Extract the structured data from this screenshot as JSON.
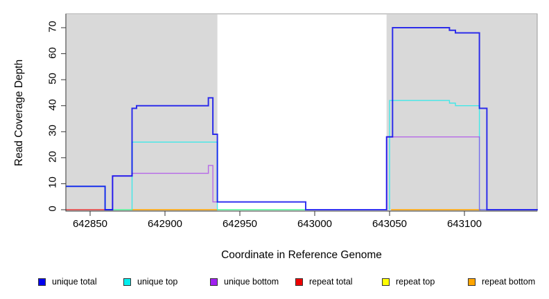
{
  "chart_data": {
    "type": "step-line",
    "title": "",
    "xlabel": "Coordinate in Reference Genome",
    "ylabel": "Read Coverage Depth",
    "x_ticks": [
      642850,
      642900,
      642950,
      643000,
      643050,
      643100
    ],
    "y_ticks": [
      0,
      10,
      20,
      30,
      40,
      50,
      60,
      70
    ],
    "x_range": [
      642834,
      643149
    ],
    "y_range": [
      0,
      75.5
    ],
    "grid": false,
    "legend_position": "bottom",
    "shaded_region_color": "#d9d9d9",
    "shaded_regions": [
      {
        "x0": 642834,
        "x1": 642935
      },
      {
        "x0": 643048,
        "x1": 643149
      }
    ],
    "series": [
      {
        "name": "repeat total",
        "color": "#EE0000",
        "width": 1.5,
        "opacity": 0.75,
        "segments": [
          [
            [
              642834,
              0
            ],
            [
              642860,
              0
            ]
          ]
        ]
      },
      {
        "name": "repeat top",
        "color": "#FFFF00",
        "width": 1.5,
        "opacity": 0.9,
        "segments": [
          [
            [
              642865,
              0
            ],
            [
              642878,
              0
            ]
          ],
          [
            [
              642935,
              0
            ],
            [
              642994,
              0
            ]
          ]
        ]
      },
      {
        "name": "repeat bottom",
        "color": "#FFA500",
        "width": 1.8,
        "opacity": 0.9,
        "segments": [
          [
            [
              642878,
              0
            ],
            [
              642935,
              0
            ]
          ],
          [
            [
              643051,
              0
            ],
            [
              643111,
              0
            ]
          ]
        ]
      },
      {
        "name": "unique top",
        "color": "#00EEEE",
        "width": 1.4,
        "opacity": 0.7,
        "segments": [
          [
            [
              642834,
              9
            ],
            [
              642860,
              0
            ],
            [
              642878,
              26
            ],
            [
              642935,
              0
            ],
            [
              642994,
              0
            ]
          ],
          [
            [
              643050,
              0
            ],
            [
              643050,
              42
            ],
            [
              643090,
              41
            ],
            [
              643094,
              40
            ],
            [
              643110,
              0
            ],
            [
              643115,
              0
            ]
          ]
        ]
      },
      {
        "name": "unique bottom",
        "color": "#A020F0",
        "width": 1.4,
        "opacity": 0.62,
        "segments": [
          [
            [
              642860,
              0
            ],
            [
              642865,
              13
            ],
            [
              642878,
              14
            ],
            [
              642929,
              17
            ],
            [
              642932,
              3
            ],
            [
              642935,
              3
            ]
          ],
          [
            [
              643048,
              0
            ],
            [
              643048,
              28
            ],
            [
              643110,
              0
            ],
            [
              643115,
              0
            ]
          ]
        ]
      },
      {
        "name": "unique total",
        "color": "#0000EE",
        "width": 2,
        "opacity": 0.8,
        "segments": [
          [
            [
              642834,
              9
            ],
            [
              642860,
              0
            ],
            [
              642865,
              13
            ],
            [
              642878,
              39
            ],
            [
              642881,
              40
            ],
            [
              642929,
              43
            ],
            [
              642932,
              29
            ],
            [
              642935,
              3
            ],
            [
              642994,
              0
            ],
            [
              643048,
              28
            ],
            [
              643052,
              70
            ],
            [
              643090,
              69
            ],
            [
              643094,
              68
            ],
            [
              643110,
              39
            ],
            [
              643115,
              0
            ],
            [
              643149,
              0
            ]
          ]
        ]
      }
    ],
    "legend": [
      {
        "label": "unique total",
        "color": "#0000EE"
      },
      {
        "label": "unique top",
        "color": "#00EEEE"
      },
      {
        "label": "unique bottom",
        "color": "#A020F0"
      },
      {
        "label": "repeat total",
        "color": "#EE0000"
      },
      {
        "label": "repeat top",
        "color": "#FFFF00"
      },
      {
        "label": "repeat bottom",
        "color": "#FFA500"
      }
    ]
  }
}
